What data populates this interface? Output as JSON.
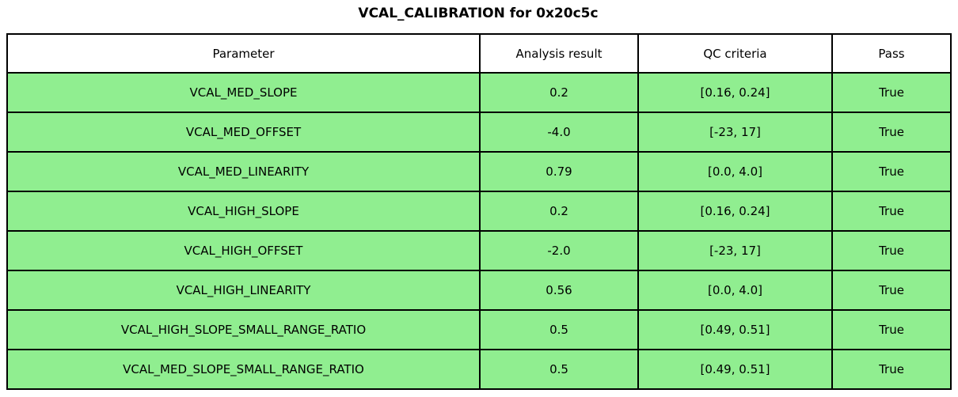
{
  "title": "VCAL_CALIBRATION for 0x20c5c",
  "colors": {
    "pass_row_bg": "#90ee90",
    "header_bg": "#ffffff",
    "border": "#000000",
    "text": "#000000"
  },
  "chart_data": {
    "type": "table",
    "title": "VCAL_CALIBRATION for 0x20c5c",
    "columns": [
      "Parameter",
      "Analysis result",
      "QC criteria",
      "Pass"
    ],
    "rows": [
      {
        "parameter": "VCAL_MED_SLOPE",
        "analysis_result": "0.2",
        "qc_criteria": "[0.16, 0.24]",
        "pass": "True"
      },
      {
        "parameter": "VCAL_MED_OFFSET",
        "analysis_result": "-4.0",
        "qc_criteria": "[-23, 17]",
        "pass": "True"
      },
      {
        "parameter": "VCAL_MED_LINEARITY",
        "analysis_result": "0.79",
        "qc_criteria": "[0.0, 4.0]",
        "pass": "True"
      },
      {
        "parameter": "VCAL_HIGH_SLOPE",
        "analysis_result": "0.2",
        "qc_criteria": "[0.16, 0.24]",
        "pass": "True"
      },
      {
        "parameter": "VCAL_HIGH_OFFSET",
        "analysis_result": "-2.0",
        "qc_criteria": "[-23, 17]",
        "pass": "True"
      },
      {
        "parameter": "VCAL_HIGH_LINEARITY",
        "analysis_result": "0.56",
        "qc_criteria": "[0.0, 4.0]",
        "pass": "True"
      },
      {
        "parameter": "VCAL_HIGH_SLOPE_SMALL_RANGE_RATIO",
        "analysis_result": "0.5",
        "qc_criteria": "[0.49, 0.51]",
        "pass": "True"
      },
      {
        "parameter": "VCAL_MED_SLOPE_SMALL_RANGE_RATIO",
        "analysis_result": "0.5",
        "qc_criteria": "[0.49, 0.51]",
        "pass": "True"
      }
    ]
  }
}
